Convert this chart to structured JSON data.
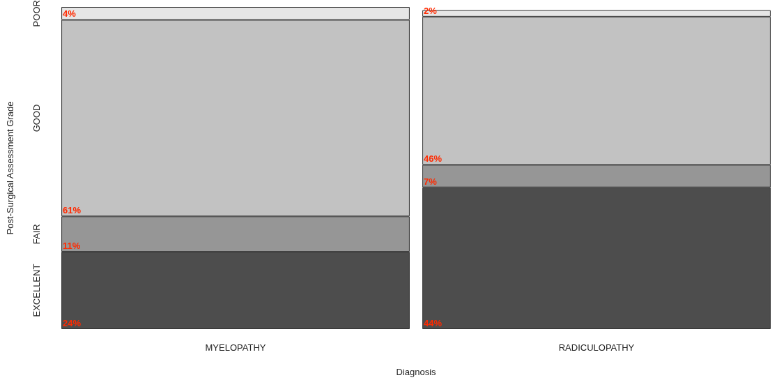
{
  "chart_data": {
    "type": "bar",
    "xlabel": "Diagnosis",
    "ylabel": "Post-Surgical Assessment Grade",
    "categories": [
      "MYELOPATHY",
      "RADICULOPATHY"
    ],
    "stacked": true,
    "legend": false,
    "grid": false,
    "tick_labels": "x",
    "series": [
      {
        "name": "EXCELLENT",
        "color": "#4d4d4d",
        "values": [
          24,
          44
        ],
        "value_labels": [
          "24%",
          "44%"
        ]
      },
      {
        "name": "FAIR",
        "color": "#969696",
        "values": [
          11,
          7
        ],
        "value_labels": [
          "11%",
          "7%"
        ]
      },
      {
        "name": "GOOD",
        "color": "#c2c2c2",
        "values": [
          61,
          46
        ],
        "value_labels": [
          "61%",
          "46%"
        ]
      },
      {
        "name": "POOR",
        "color": "#e6e6e6",
        "values": [
          4,
          2
        ],
        "value_labels": [
          "4%",
          "2%"
        ]
      }
    ]
  }
}
